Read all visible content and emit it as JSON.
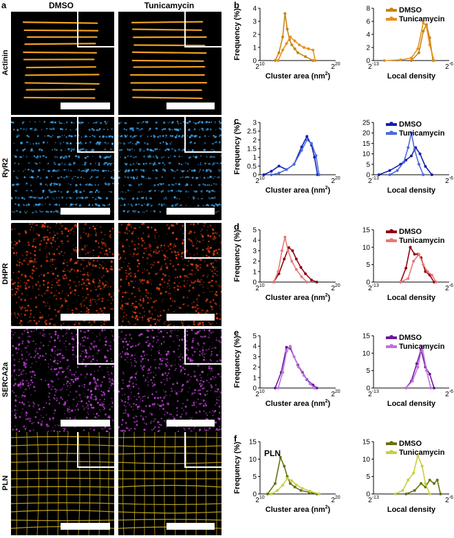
{
  "panel_letters": {
    "a": "a",
    "b": "b",
    "c": "c",
    "d": "d",
    "e": "e",
    "f": "f"
  },
  "columns": [
    "DMSO",
    "Tunicamycin"
  ],
  "rows": [
    {
      "label": "Actinin",
      "color": "#f0a020",
      "letter": "b",
      "dmso": "#c8860f",
      "tun": "#e6901c",
      "dmso_dark": "#8a6a30",
      "tun_light": "#e8901a"
    },
    {
      "label": "RyR2",
      "color": "#3aa0e8",
      "letter": "c",
      "dmso": "#1020b0",
      "tun": "#4a6ae0"
    },
    {
      "label": "DHPR",
      "color": "#e04010",
      "letter": "d",
      "dmso": "#900010",
      "tun": "#e87878"
    },
    {
      "label": "SERCA2a",
      "color": "#c040d8",
      "letter": "e",
      "dmso": "#6a1a9a",
      "tun": "#c070e0"
    },
    {
      "label": "PLN",
      "color": "#e0c020",
      "letter": "f",
      "dmso": "#6a7010",
      "tun": "#c8d040"
    }
  ],
  "legend": {
    "dmso": "DMSO",
    "tunicamycin": "Tunicamycin"
  },
  "axis_text": {
    "ylabel": "Frequency (%)",
    "xlabel_area": "Cluster area (nm",
    "xlabel_area_sup": "2",
    "xlabel_area_close": ")",
    "xlabel_density": "Local density",
    "base": "2",
    "area_min_exp": "10",
    "area_max_exp": "20",
    "dens_min_exp": "-13",
    "dens_max_exp": "-6"
  },
  "pln_tag": "PLN",
  "chart_data": [
    {
      "type": "line",
      "panel": "b",
      "xlabel": "Cluster area (nm2)",
      "ylabel": "Frequency (%)",
      "x_scale": "log2",
      "xlim": [
        10,
        20
      ],
      "ylim": [
        0,
        4
      ],
      "yticks": [
        0,
        1,
        2,
        3,
        4
      ],
      "series": [
        {
          "name": "DMSO",
          "x": [
            12,
            12.5,
            13,
            13.3,
            13.6,
            13.9,
            14.2,
            14.6,
            15,
            16,
            17
          ],
          "y": [
            0,
            0.6,
            1.8,
            3.6,
            2.4,
            1.6,
            1.2,
            0.9,
            0.6,
            0.3,
            0
          ]
        },
        {
          "name": "Tunicamycin",
          "x": [
            12.4,
            13,
            13.5,
            14,
            14.6,
            15.2,
            15.8,
            16.4,
            17,
            17.3
          ],
          "y": [
            0,
            0.8,
            1.3,
            1.8,
            1.5,
            1.2,
            1.0,
            0.9,
            0.8,
            0
          ]
        }
      ]
    },
    {
      "type": "line",
      "panel": "b",
      "xlabel": "Local density",
      "ylabel": "Frequency (%)",
      "x_scale": "log2",
      "xlim": [
        -13,
        -6
      ],
      "ylim": [
        0,
        8
      ],
      "yticks": [
        0,
        2,
        4,
        6,
        8
      ],
      "series": [
        {
          "name": "DMSO",
          "x": [
            -9.5,
            -8.8,
            -8.4,
            -8.1,
            -7.8,
            -7.5
          ],
          "y": [
            0,
            1.2,
            4.5,
            5.5,
            3.5,
            0
          ]
        },
        {
          "name": "Tunicamycin",
          "x": [
            -12,
            -10.5,
            -9.5,
            -8.9,
            -8.4,
            -8.1,
            -7.8,
            -7.4
          ],
          "y": [
            0,
            0.1,
            0.4,
            1.8,
            5.8,
            5.2,
            2.4,
            0
          ]
        }
      ]
    },
    {
      "type": "line",
      "panel": "c",
      "xlabel": "Cluster area (nm2)",
      "ylabel": "Frequency (%)",
      "x_scale": "log2",
      "xlim": [
        10,
        20
      ],
      "ylim": [
        0,
        3
      ],
      "yticks": [
        0,
        0.5,
        1,
        1.5,
        2,
        2.5,
        3
      ],
      "series": [
        {
          "name": "DMSO",
          "x": [
            10.5,
            11.5,
            12.5,
            13.5,
            14.5,
            15.5,
            16.2,
            16.8,
            17.2,
            17.6
          ],
          "y": [
            0,
            0.2,
            0.5,
            0.3,
            0.6,
            1.6,
            2.2,
            1.7,
            1.0,
            0
          ]
        },
        {
          "name": "Tunicamycin",
          "x": [
            11.5,
            12.5,
            13.5,
            14.5,
            15.5,
            16.2,
            16.8,
            17.4,
            17.8
          ],
          "y": [
            0,
            0.1,
            0.3,
            0.6,
            1.4,
            2.0,
            1.8,
            1.1,
            0
          ]
        }
      ]
    },
    {
      "type": "line",
      "panel": "c",
      "xlabel": "Local density",
      "ylabel": "Frequency (%)",
      "x_scale": "log2",
      "xlim": [
        -13,
        -6
      ],
      "ylim": [
        0,
        25
      ],
      "yticks": [
        0,
        5,
        10,
        15,
        20,
        25
      ],
      "series": [
        {
          "name": "DMSO",
          "x": [
            -12.5,
            -11.5,
            -10.5,
            -10,
            -9.5,
            -9.1,
            -8.7,
            -8.2,
            -7.6
          ],
          "y": [
            0,
            2,
            5,
            7,
            9,
            13,
            10,
            4,
            0
          ]
        },
        {
          "name": "Tunicamycin",
          "x": [
            -11.5,
            -10.8,
            -10.2,
            -9.8,
            -9.5,
            -9.2,
            -8.8,
            -8.4
          ],
          "y": [
            0,
            2,
            6,
            13,
            20,
            12,
            5,
            0
          ]
        }
      ]
    },
    {
      "type": "line",
      "panel": "d",
      "xlabel": "Cluster area (nm2)",
      "ylabel": "Frequency (%)",
      "x_scale": "log2",
      "xlim": [
        10,
        20
      ],
      "ylim": [
        0,
        5
      ],
      "yticks": [
        0,
        1,
        2,
        3,
        4,
        5
      ],
      "series": [
        {
          "name": "DMSO",
          "x": [
            11.8,
            12.5,
            13.2,
            13.8,
            14.3,
            14.8,
            15.4,
            16,
            16.8,
            17.5
          ],
          "y": [
            0,
            0.8,
            2.2,
            3.3,
            3.0,
            2.2,
            1.4,
            0.8,
            0.2,
            0
          ]
        },
        {
          "name": "Tunicamycin",
          "x": [
            11.8,
            12.4,
            12.9,
            13.3,
            13.7,
            14.2,
            14.8,
            15.5,
            16.2
          ],
          "y": [
            0,
            1.0,
            3.0,
            4.3,
            3.0,
            2.0,
            1.2,
            0.5,
            0
          ]
        }
      ]
    },
    {
      "type": "line",
      "panel": "d",
      "xlabel": "Local density",
      "ylabel": "Frequency (%)",
      "x_scale": "log2",
      "xlim": [
        -13,
        -6
      ],
      "ylim": [
        0,
        15
      ],
      "yticks": [
        0,
        5,
        10,
        15
      ],
      "series": [
        {
          "name": "DMSO",
          "x": [
            -10.5,
            -10,
            -9.6,
            -9.2,
            -8.9,
            -8.6,
            -8.2,
            -7.8,
            -7.4
          ],
          "y": [
            0,
            4,
            10,
            8,
            8,
            7,
            3,
            2,
            0
          ]
        },
        {
          "name": "Tunicamycin",
          "x": [
            -10.5,
            -9.8,
            -9.3,
            -8.8,
            -8.4,
            -8,
            -7.6,
            -7.2
          ],
          "y": [
            0,
            1,
            6,
            8,
            5,
            3,
            2,
            0
          ]
        }
      ]
    },
    {
      "type": "line",
      "panel": "e",
      "xlabel": "Cluster area (nm2)",
      "ylabel": "Frequency (%)",
      "x_scale": "log2",
      "xlim": [
        10,
        20
      ],
      "ylim": [
        0,
        5
      ],
      "yticks": [
        0,
        1,
        2,
        3,
        4,
        5
      ],
      "series": [
        {
          "name": "DMSO",
          "x": [
            12,
            12.8,
            13.5,
            14,
            14.5,
            15,
            15.6,
            16.2,
            17,
            17.5
          ],
          "y": [
            0,
            1.5,
            3.9,
            3.8,
            3.0,
            2.2,
            1.5,
            0.8,
            0.3,
            0
          ]
        },
        {
          "name": "Tunicamycin",
          "x": [
            12.4,
            13,
            13.5,
            14,
            14.5,
            15.1,
            15.8,
            16.6,
            17.2
          ],
          "y": [
            0,
            1.5,
            3.5,
            4.0,
            3.0,
            2.0,
            1.2,
            0.4,
            0
          ]
        }
      ]
    },
    {
      "type": "line",
      "panel": "e",
      "xlabel": "Local density",
      "ylabel": "Frequency (%)",
      "x_scale": "log2",
      "xlim": [
        -13,
        -6
      ],
      "ylim": [
        0,
        15
      ],
      "yticks": [
        0,
        5,
        10,
        15
      ],
      "series": [
        {
          "name": "DMSO",
          "x": [
            -10,
            -9.5,
            -9,
            -8.6,
            -8.2,
            -7.8,
            -7.4
          ],
          "y": [
            0,
            2,
            7,
            11,
            6,
            4,
            0
          ]
        },
        {
          "name": "Tunicamycin",
          "x": [
            -10,
            -9.4,
            -8.9,
            -8.5,
            -8.1,
            -7.7
          ],
          "y": [
            0,
            2,
            6,
            12,
            5,
            0
          ]
        }
      ]
    },
    {
      "type": "line",
      "panel": "f",
      "xlabel": "Cluster area (nm2)",
      "ylabel": "Frequency (%)",
      "x_scale": "log2",
      "xlim": [
        10,
        20
      ],
      "ylim": [
        0,
        15
      ],
      "yticks": [
        0,
        5,
        10,
        15
      ],
      "series": [
        {
          "name": "DMSO",
          "x": [
            11,
            12,
            12.7,
            13.2,
            13.6,
            14,
            14.6,
            15.4,
            16.5,
            17.5
          ],
          "y": [
            0,
            3,
            10.5,
            8,
            5,
            3,
            2,
            1,
            0.5,
            0
          ]
        },
        {
          "name": "Tunicamycin",
          "x": [
            11.5,
            12.3,
            13,
            13.6,
            14.2,
            14.8,
            15.6,
            16.6,
            17.8
          ],
          "y": [
            0,
            1,
            2.5,
            4.5,
            3.8,
            2.6,
            1.6,
            0.8,
            0
          ]
        }
      ]
    },
    {
      "type": "line",
      "panel": "f",
      "xlabel": "Local density",
      "ylabel": "Frequency (%)",
      "x_scale": "log2",
      "xlim": [
        -13,
        -6
      ],
      "ylim": [
        0,
        15
      ],
      "yticks": [
        0,
        5,
        10,
        15
      ],
      "series": [
        {
          "name": "DMSO",
          "x": [
            -10,
            -9.2,
            -8.6,
            -8.2,
            -7.8,
            -7.4,
            -7.1,
            -6.8
          ],
          "y": [
            0,
            1,
            3,
            2,
            4,
            3,
            4,
            0
          ]
        },
        {
          "name": "Tunicamycin",
          "x": [
            -11,
            -10.3,
            -9.8,
            -9.3,
            -8.9,
            -8.5,
            -8.2,
            -7.8
          ],
          "y": [
            0,
            1,
            4,
            6,
            11,
            8,
            3,
            0
          ]
        }
      ]
    }
  ]
}
